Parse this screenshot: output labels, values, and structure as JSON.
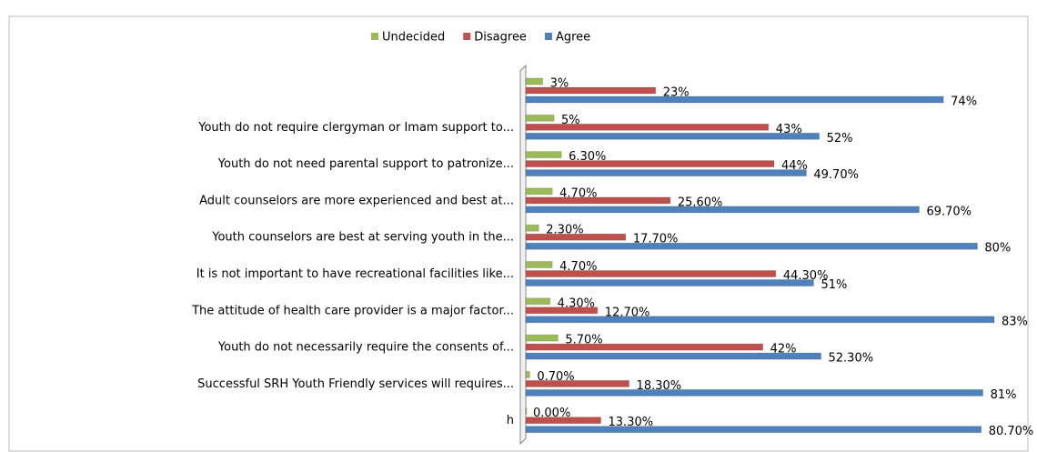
{
  "chart_data": {
    "type": "bar",
    "orientation": "horizontal",
    "categories": [
      null,
      "Youth do not require clergyman or Imam support to...",
      "Youth do not need parental support to patronize...",
      "Adult counselors are more experienced and best at...",
      "Youth counselors are best at serving youth in the...",
      "It is not important to have recreational facilities like...",
      "The attitude of health care provider is a major factor...",
      "Youth do not necessarily require the consents of...",
      "Successful SRH Youth Friendly services will requires...",
      "h"
    ],
    "series": [
      {
        "name": "Undecided",
        "color": "#9bbb59",
        "values": [
          3,
          5,
          6.3,
          4.7,
          2.3,
          4.7,
          4.3,
          5.7,
          0.7,
          0
        ],
        "value_labels": [
          "3%",
          "5%",
          "6.30%",
          "4.70%",
          "2.30%",
          "4.70%",
          "4.30%",
          "5.70%",
          "0.70%",
          "0.00%"
        ]
      },
      {
        "name": "Disagree",
        "color": "#c0504d",
        "values": [
          23,
          43,
          44,
          25.6,
          17.7,
          44.3,
          12.7,
          42,
          18.3,
          13.3
        ],
        "value_labels": [
          "23%",
          "43%",
          "44%",
          "25.60%",
          "17.70%",
          "44.30%",
          "12.70%",
          "42%",
          "18.30%",
          "13.30%"
        ]
      },
      {
        "name": "Agree",
        "color": "#4f81bd",
        "values": [
          74,
          52,
          49.7,
          69.7,
          80,
          51,
          83,
          52.3,
          81,
          80.7
        ],
        "value_labels": [
          "74%",
          "52%",
          "49.70%",
          "69.70%",
          "80%",
          "51%",
          "83%",
          "52.30%",
          "81%",
          "80.70%"
        ]
      }
    ],
    "legend": "top"
  }
}
